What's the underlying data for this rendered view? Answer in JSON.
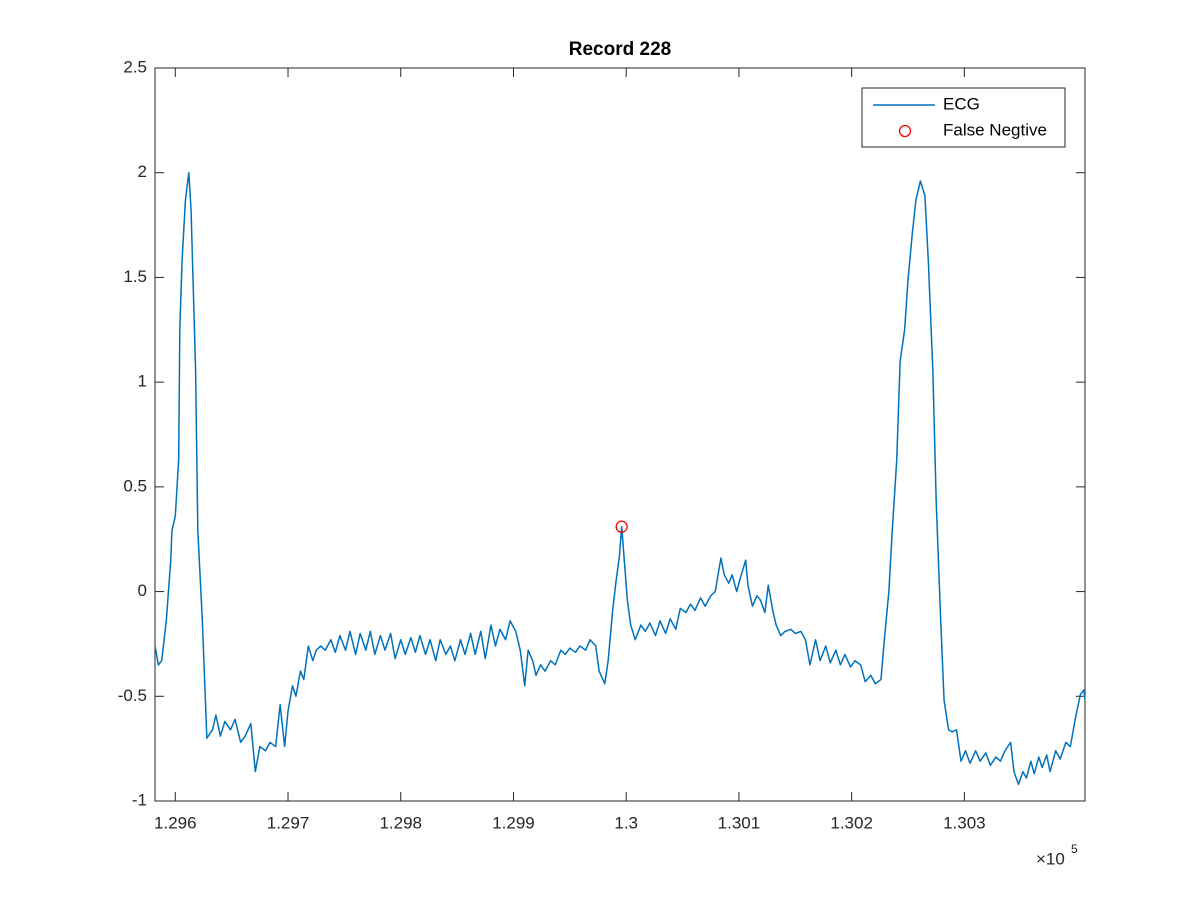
{
  "chart_data": {
    "type": "line",
    "title": "Record 228",
    "xlim": [
      129582,
      130407
    ],
    "ylim": [
      -1,
      2.5
    ],
    "xticks": [
      {
        "value": 129600,
        "label": "1.296"
      },
      {
        "value": 129700,
        "label": "1.297"
      },
      {
        "value": 129800,
        "label": "1.298"
      },
      {
        "value": 129900,
        "label": "1.299"
      },
      {
        "value": 130000,
        "label": "1.3"
      },
      {
        "value": 130100,
        "label": "1.301"
      },
      {
        "value": 130200,
        "label": "1.302"
      },
      {
        "value": 130300,
        "label": "1.303"
      }
    ],
    "yticks": [
      -1,
      -0.5,
      0,
      0.5,
      1,
      1.5,
      2,
      2.5
    ],
    "x_scale_base": "×10",
    "x_scale_exponent": "5",
    "grid": false,
    "legend": "top-right",
    "series": [
      {
        "name": "ECG",
        "color": "#0072bd",
        "marker": "none",
        "x": [
          129582,
          129585,
          129588,
          129592,
          129596,
          129597,
          129600,
          129603,
          129604,
          129606,
          129609,
          129612,
          129614,
          129618,
          129620,
          129624,
          129628,
          129633,
          129636,
          129640,
          129644,
          129649,
          129653,
          129658,
          129662,
          129667,
          129671,
          129675,
          129680,
          129684,
          129689,
          129693,
          129697,
          129700,
          129704,
          129707,
          129711,
          129714,
          129718,
          129722,
          129725,
          129729,
          129733,
          129738,
          129742,
          129746,
          129751,
          129755,
          129760,
          129764,
          129769,
          129773,
          129777,
          129782,
          129786,
          129791,
          129795,
          129800,
          129804,
          129809,
          129813,
          129817,
          129822,
          129826,
          129831,
          129835,
          129840,
          129844,
          129848,
          129853,
          129857,
          129862,
          129866,
          129871,
          129875,
          129880,
          129884,
          129888,
          129893,
          129897,
          129902,
          129906,
          129910,
          129913,
          129917,
          129920,
          129924,
          129928,
          129933,
          129937,
          129942,
          129946,
          129950,
          129955,
          129959,
          129964,
          129968,
          129973,
          129976,
          129981,
          129984,
          129988,
          129991,
          129994,
          129996,
          129998,
          130001,
          130004,
          130008,
          130013,
          130017,
          130021,
          130026,
          130030,
          130035,
          130039,
          130044,
          130048,
          130053,
          130057,
          130061,
          130066,
          130070,
          130075,
          130079,
          130084,
          130087,
          130091,
          130094,
          130098,
          130101,
          130106,
          130108,
          130112,
          130116,
          130119,
          130123,
          130126,
          130130,
          130133,
          130137,
          130141,
          130146,
          130150,
          130155,
          130159,
          130163,
          130168,
          130172,
          130177,
          130181,
          130186,
          130190,
          130194,
          130199,
          130203,
          130208,
          130212,
          130217,
          130221,
          130226,
          130229,
          130233,
          130236,
          130240,
          130243,
          130247,
          130250,
          130254,
          130257,
          130261,
          130265,
          130268,
          130272,
          130275,
          130279,
          130282,
          130286,
          130289,
          130293,
          130297,
          130301,
          130305,
          130310,
          130314,
          130319,
          130323,
          130328,
          130332,
          130336,
          130341,
          130344,
          130348,
          130352,
          130355,
          130359,
          130362,
          130366,
          130369,
          130373,
          130376,
          130381,
          130385,
          130390,
          130394,
          130399,
          130403,
          130406,
          130407
        ],
        "values": [
          -0.26,
          -0.35,
          -0.33,
          -0.14,
          0.15,
          0.29,
          0.36,
          0.63,
          1.25,
          1.58,
          1.87,
          2.0,
          1.82,
          1.06,
          0.29,
          -0.14,
          -0.7,
          -0.66,
          -0.59,
          -0.69,
          -0.62,
          -0.66,
          -0.61,
          -0.72,
          -0.69,
          -0.63,
          -0.86,
          -0.74,
          -0.76,
          -0.72,
          -0.74,
          -0.54,
          -0.74,
          -0.57,
          -0.45,
          -0.5,
          -0.38,
          -0.42,
          -0.26,
          -0.33,
          -0.28,
          -0.26,
          -0.28,
          -0.23,
          -0.29,
          -0.21,
          -0.28,
          -0.19,
          -0.3,
          -0.2,
          -0.28,
          -0.19,
          -0.3,
          -0.21,
          -0.28,
          -0.2,
          -0.32,
          -0.23,
          -0.3,
          -0.22,
          -0.29,
          -0.21,
          -0.3,
          -0.23,
          -0.33,
          -0.23,
          -0.3,
          -0.26,
          -0.33,
          -0.23,
          -0.3,
          -0.2,
          -0.3,
          -0.19,
          -0.32,
          -0.16,
          -0.26,
          -0.18,
          -0.23,
          -0.14,
          -0.19,
          -0.28,
          -0.45,
          -0.28,
          -0.33,
          -0.4,
          -0.35,
          -0.38,
          -0.33,
          -0.35,
          -0.28,
          -0.3,
          -0.27,
          -0.29,
          -0.26,
          -0.28,
          -0.23,
          -0.26,
          -0.38,
          -0.44,
          -0.33,
          -0.09,
          0.05,
          0.17,
          0.31,
          0.17,
          -0.04,
          -0.16,
          -0.23,
          -0.16,
          -0.19,
          -0.15,
          -0.21,
          -0.14,
          -0.2,
          -0.13,
          -0.18,
          -0.08,
          -0.1,
          -0.06,
          -0.09,
          -0.03,
          -0.07,
          -0.02,
          0.0,
          0.16,
          0.08,
          0.04,
          0.08,
          0.0,
          0.06,
          0.15,
          0.03,
          -0.07,
          -0.02,
          -0.04,
          -0.1,
          0.03,
          -0.09,
          -0.16,
          -0.21,
          -0.19,
          -0.18,
          -0.2,
          -0.19,
          -0.23,
          -0.35,
          -0.23,
          -0.33,
          -0.26,
          -0.34,
          -0.28,
          -0.35,
          -0.3,
          -0.36,
          -0.33,
          -0.35,
          -0.43,
          -0.4,
          -0.44,
          -0.42,
          -0.23,
          0.0,
          0.29,
          0.63,
          1.1,
          1.25,
          1.49,
          1.72,
          1.87,
          1.96,
          1.89,
          1.58,
          1.06,
          0.43,
          -0.14,
          -0.52,
          -0.66,
          -0.67,
          -0.66,
          -0.81,
          -0.76,
          -0.82,
          -0.76,
          -0.81,
          -0.77,
          -0.83,
          -0.79,
          -0.81,
          -0.76,
          -0.72,
          -0.86,
          -0.92,
          -0.86,
          -0.89,
          -0.81,
          -0.87,
          -0.79,
          -0.84,
          -0.78,
          -0.86,
          -0.76,
          -0.8,
          -0.72,
          -0.74,
          -0.59,
          -0.49,
          -0.47,
          -0.52
        ]
      },
      {
        "name": "False Negtive",
        "color": "#ff0000",
        "marker": "o",
        "x": [
          129996
        ],
        "values": [
          0.31
        ]
      }
    ]
  }
}
